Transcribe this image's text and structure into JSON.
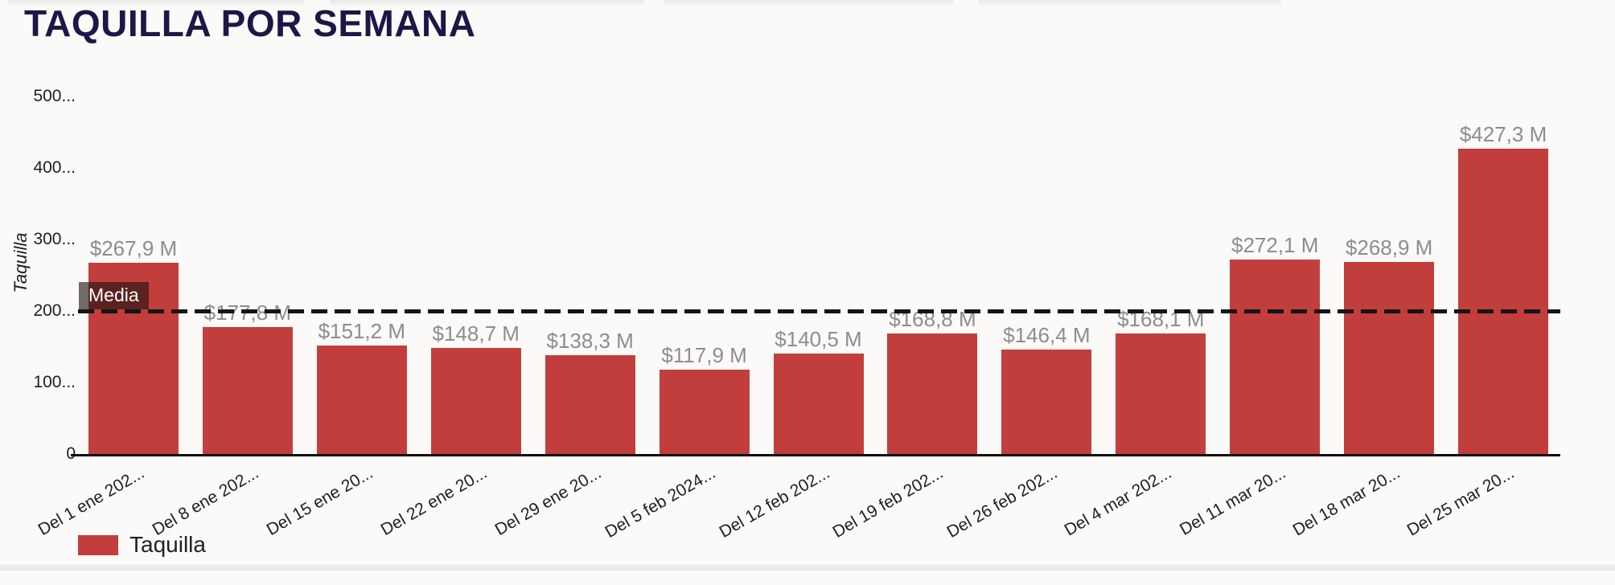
{
  "chart_data": {
    "type": "bar",
    "title": "TAQUILLA POR SEMANA",
    "title_color": "#1d1747",
    "xlabel": "",
    "ylabel": "Taquilla",
    "ylim": [
      0,
      500
    ],
    "grid": false,
    "y_ticks": [
      {
        "value": 0,
        "label": "0"
      },
      {
        "value": 100,
        "label": "100..."
      },
      {
        "value": 200,
        "label": "200..."
      },
      {
        "value": 300,
        "label": "300..."
      },
      {
        "value": 400,
        "label": "400..."
      },
      {
        "value": 500,
        "label": "500..."
      }
    ],
    "categories": [
      "Del 1 ene 202...",
      "Del 8 ene 202...",
      "Del 15 ene 20...",
      "Del 22 ene 20...",
      "Del 29 ene 20...",
      "Del 5 feb 2024...",
      "Del 12 feb 202...",
      "Del 19 feb 202...",
      "Del 26 feb 202...",
      "Del 4 mar 202...",
      "Del 11 mar 20...",
      "Del 18 mar 20...",
      "Del 25 mar 20..."
    ],
    "values": [
      267.9,
      177.8,
      151.2,
      148.7,
      138.3,
      117.9,
      140.5,
      168.8,
      146.4,
      168.1,
      272.1,
      268.9,
      427.3
    ],
    "value_labels": [
      "$267,9 M",
      "$177,8 M",
      "$151,2 M",
      "$148,7 M",
      "$138,3 M",
      "$117,9 M",
      "$140,5 M",
      "$168,8 M",
      "$146,4 M",
      "$168,1 M",
      "$272,1 M",
      "$268,9 M",
      "$427,3 M"
    ],
    "value_label_color": "#8d8d8d",
    "bar_color": "#c23e3c",
    "mean_line": {
      "value": 199.5,
      "label": "Media",
      "line_color": "#141414"
    },
    "legend_position": "bottom-left",
    "legend": [
      {
        "label": "Taquilla",
        "color": "#c23e3c"
      }
    ]
  }
}
